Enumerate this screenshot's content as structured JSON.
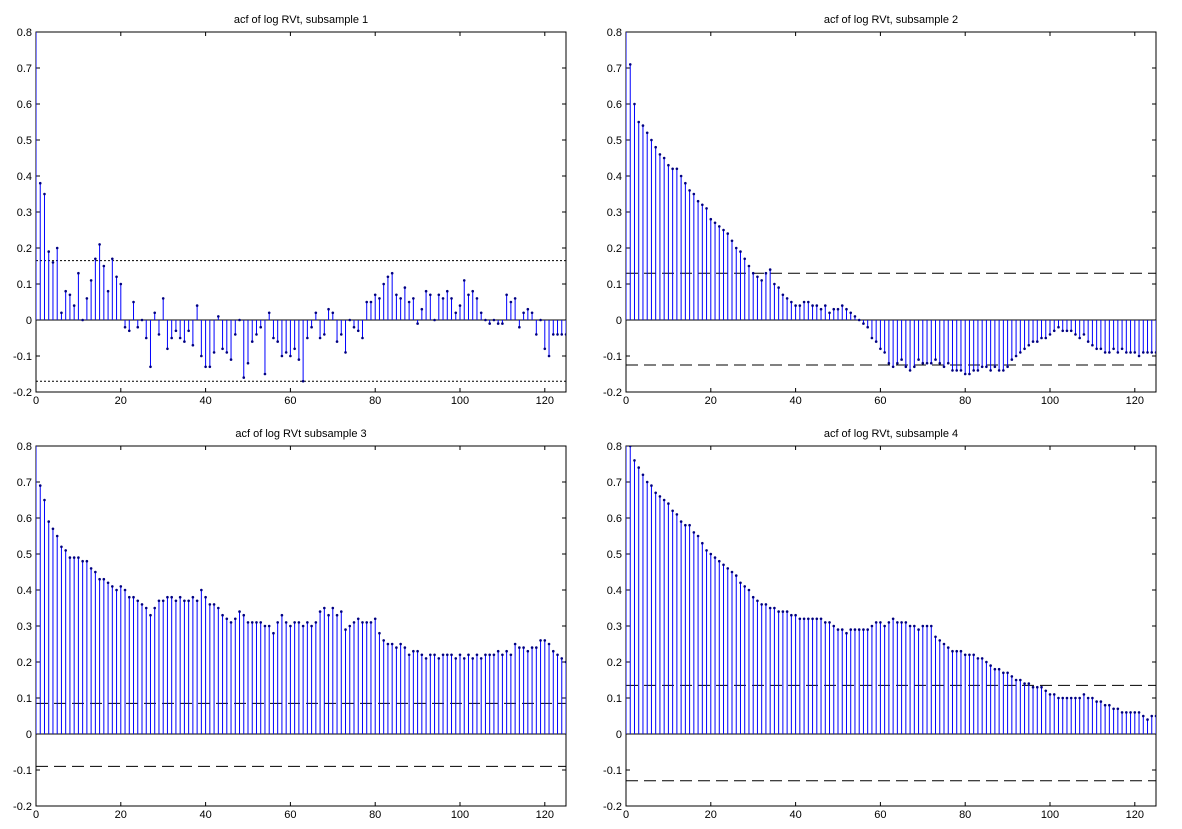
{
  "colors": {
    "stem": "#0000ff",
    "marker": "#000080",
    "axis": "#000000",
    "bound": "#000000"
  },
  "chart_data": [
    {
      "type": "stem",
      "title": "acf of log RVt, subsample 1",
      "xlim": [
        0,
        125
      ],
      "ylim": [
        -0.2,
        0.8
      ],
      "xticks": [
        0,
        20,
        40,
        60,
        80,
        100,
        120
      ],
      "yticks": [
        -0.2,
        -0.1,
        0,
        0.1,
        0.2,
        0.3,
        0.4,
        0.5,
        0.6,
        0.7,
        0.8
      ],
      "confidence_bounds": {
        "upper": 0.165,
        "lower": -0.17,
        "style": "dotted"
      },
      "lags": "0-125",
      "values": [
        1.0,
        0.38,
        0.35,
        0.19,
        0.16,
        0.2,
        0.02,
        0.08,
        0.07,
        0.04,
        0.13,
        0.0,
        0.06,
        0.11,
        0.17,
        0.21,
        0.15,
        0.08,
        0.17,
        0.12,
        0.1,
        -0.02,
        -0.03,
        0.05,
        -0.02,
        0.0,
        -0.05,
        -0.13,
        0.02,
        -0.04,
        0.06,
        -0.08,
        -0.05,
        -0.03,
        -0.05,
        -0.06,
        -0.03,
        -0.07,
        0.04,
        -0.1,
        -0.13,
        -0.13,
        -0.09,
        0.01,
        -0.08,
        -0.09,
        -0.11,
        -0.04,
        0.0,
        -0.16,
        -0.12,
        -0.06,
        -0.04,
        -0.02,
        -0.15,
        0.02,
        -0.05,
        -0.06,
        -0.1,
        -0.09,
        -0.1,
        -0.08,
        -0.11,
        -0.17,
        -0.05,
        -0.02,
        0.02,
        -0.05,
        -0.04,
        0.03,
        0.02,
        -0.06,
        -0.04,
        -0.09,
        0.0,
        -0.02,
        -0.03,
        -0.05,
        0.05,
        0.05,
        0.07,
        0.06,
        0.1,
        0.12,
        0.13,
        0.07,
        0.06,
        0.09,
        0.05,
        0.06,
        -0.01,
        0.03,
        0.08,
        0.07,
        0.0,
        0.07,
        0.06,
        0.08,
        0.06,
        0.02,
        0.04,
        0.11,
        0.07,
        0.08,
        0.06,
        0.02,
        0.0,
        -0.01,
        0.0,
        -0.01,
        -0.01,
        0.07,
        0.05,
        0.06,
        -0.02,
        0.02,
        0.03,
        0.02,
        -0.04,
        0.0,
        -0.08,
        -0.1,
        -0.04,
        -0.04,
        -0.04,
        -0.04
      ]
    },
    {
      "type": "stem",
      "title": "acf of log RVt, subsample 2",
      "xlim": [
        0,
        125
      ],
      "ylim": [
        -0.2,
        0.8
      ],
      "xticks": [
        0,
        20,
        40,
        60,
        80,
        100,
        120
      ],
      "yticks": [
        -0.2,
        -0.1,
        0,
        0.1,
        0.2,
        0.3,
        0.4,
        0.5,
        0.6,
        0.7,
        0.8
      ],
      "confidence_bounds": {
        "upper": 0.13,
        "lower": -0.125,
        "style": "dashed"
      },
      "lags": "0-125",
      "values": [
        1.0,
        0.71,
        0.6,
        0.55,
        0.54,
        0.52,
        0.5,
        0.48,
        0.46,
        0.45,
        0.43,
        0.42,
        0.42,
        0.4,
        0.38,
        0.36,
        0.35,
        0.33,
        0.32,
        0.31,
        0.28,
        0.27,
        0.26,
        0.25,
        0.24,
        0.22,
        0.2,
        0.19,
        0.17,
        0.15,
        0.13,
        0.12,
        0.11,
        0.13,
        0.14,
        0.1,
        0.09,
        0.07,
        0.06,
        0.05,
        0.04,
        0.04,
        0.05,
        0.05,
        0.04,
        0.04,
        0.03,
        0.04,
        0.02,
        0.03,
        0.03,
        0.04,
        0.03,
        0.02,
        0.01,
        0.0,
        -0.01,
        -0.02,
        -0.05,
        -0.06,
        -0.08,
        -0.09,
        -0.12,
        -0.13,
        -0.12,
        -0.11,
        -0.13,
        -0.14,
        -0.13,
        -0.11,
        -0.12,
        -0.12,
        -0.12,
        -0.11,
        -0.12,
        -0.13,
        -0.12,
        -0.14,
        -0.14,
        -0.14,
        -0.15,
        -0.15,
        -0.14,
        -0.14,
        -0.13,
        -0.13,
        -0.14,
        -0.13,
        -0.14,
        -0.14,
        -0.13,
        -0.11,
        -0.1,
        -0.09,
        -0.08,
        -0.07,
        -0.06,
        -0.06,
        -0.05,
        -0.05,
        -0.04,
        -0.03,
        -0.02,
        -0.03,
        -0.03,
        -0.03,
        -0.04,
        -0.05,
        -0.04,
        -0.06,
        -0.07,
        -0.08,
        -0.08,
        -0.09,
        -0.09,
        -0.08,
        -0.09,
        -0.08,
        -0.09,
        -0.09,
        -0.09,
        -0.1,
        -0.09,
        -0.09,
        -0.09,
        -0.09
      ]
    },
    {
      "type": "stem",
      "title": "acf of log RVt subsample 3",
      "xlim": [
        0,
        125
      ],
      "ylim": [
        -0.2,
        0.8
      ],
      "xticks": [
        0,
        20,
        40,
        60,
        80,
        100,
        120
      ],
      "yticks": [
        -0.2,
        -0.1,
        0,
        0.1,
        0.2,
        0.3,
        0.4,
        0.5,
        0.6,
        0.7,
        0.8
      ],
      "confidence_bounds": {
        "upper": 0.085,
        "lower": -0.09,
        "style": "dashed"
      },
      "lags": "0-125",
      "values": [
        1.0,
        0.69,
        0.65,
        0.59,
        0.57,
        0.55,
        0.52,
        0.51,
        0.49,
        0.49,
        0.49,
        0.48,
        0.48,
        0.46,
        0.45,
        0.43,
        0.43,
        0.42,
        0.41,
        0.4,
        0.41,
        0.4,
        0.38,
        0.38,
        0.37,
        0.36,
        0.35,
        0.33,
        0.35,
        0.37,
        0.37,
        0.38,
        0.38,
        0.37,
        0.38,
        0.37,
        0.37,
        0.38,
        0.37,
        0.4,
        0.38,
        0.36,
        0.36,
        0.35,
        0.33,
        0.32,
        0.31,
        0.32,
        0.34,
        0.33,
        0.31,
        0.31,
        0.31,
        0.31,
        0.3,
        0.3,
        0.28,
        0.31,
        0.33,
        0.31,
        0.3,
        0.31,
        0.31,
        0.3,
        0.31,
        0.3,
        0.31,
        0.34,
        0.35,
        0.33,
        0.35,
        0.33,
        0.34,
        0.29,
        0.3,
        0.31,
        0.32,
        0.31,
        0.31,
        0.31,
        0.32,
        0.28,
        0.26,
        0.25,
        0.25,
        0.24,
        0.25,
        0.24,
        0.22,
        0.23,
        0.23,
        0.22,
        0.21,
        0.22,
        0.22,
        0.21,
        0.22,
        0.22,
        0.22,
        0.21,
        0.22,
        0.21,
        0.22,
        0.21,
        0.22,
        0.21,
        0.22,
        0.22,
        0.22,
        0.23,
        0.22,
        0.23,
        0.22,
        0.25,
        0.24,
        0.24,
        0.23,
        0.24,
        0.24,
        0.26,
        0.26,
        0.25,
        0.23,
        0.22,
        0.21,
        0.2
      ]
    },
    {
      "type": "stem",
      "title": "acf of log RVt, subsample 4",
      "xlim": [
        0,
        125
      ],
      "ylim": [
        -0.2,
        0.8
      ],
      "xticks": [
        0,
        20,
        40,
        60,
        80,
        100,
        120
      ],
      "yticks": [
        -0.2,
        -0.1,
        0,
        0.1,
        0.2,
        0.3,
        0.4,
        0.5,
        0.6,
        0.7,
        0.8
      ],
      "confidence_bounds": {
        "upper": 0.135,
        "lower": -0.13,
        "style": "dashed"
      },
      "lags": "0-125",
      "values": [
        1.0,
        0.8,
        0.76,
        0.74,
        0.72,
        0.7,
        0.69,
        0.67,
        0.66,
        0.65,
        0.64,
        0.62,
        0.61,
        0.59,
        0.58,
        0.58,
        0.56,
        0.55,
        0.53,
        0.51,
        0.5,
        0.49,
        0.48,
        0.47,
        0.46,
        0.45,
        0.44,
        0.42,
        0.41,
        0.4,
        0.38,
        0.37,
        0.36,
        0.36,
        0.35,
        0.35,
        0.34,
        0.34,
        0.34,
        0.33,
        0.33,
        0.32,
        0.32,
        0.32,
        0.32,
        0.32,
        0.32,
        0.31,
        0.31,
        0.3,
        0.29,
        0.29,
        0.28,
        0.29,
        0.29,
        0.29,
        0.29,
        0.29,
        0.3,
        0.31,
        0.31,
        0.3,
        0.31,
        0.32,
        0.31,
        0.31,
        0.31,
        0.3,
        0.3,
        0.29,
        0.3,
        0.3,
        0.3,
        0.27,
        0.26,
        0.25,
        0.24,
        0.23,
        0.23,
        0.23,
        0.22,
        0.22,
        0.22,
        0.21,
        0.21,
        0.2,
        0.19,
        0.18,
        0.18,
        0.17,
        0.17,
        0.16,
        0.15,
        0.15,
        0.14,
        0.14,
        0.13,
        0.13,
        0.13,
        0.12,
        0.11,
        0.11,
        0.1,
        0.1,
        0.1,
        0.1,
        0.1,
        0.1,
        0.11,
        0.1,
        0.1,
        0.09,
        0.09,
        0.08,
        0.08,
        0.07,
        0.07,
        0.06,
        0.06,
        0.06,
        0.06,
        0.06,
        0.05,
        0.04,
        0.05,
        0.05
      ]
    }
  ]
}
